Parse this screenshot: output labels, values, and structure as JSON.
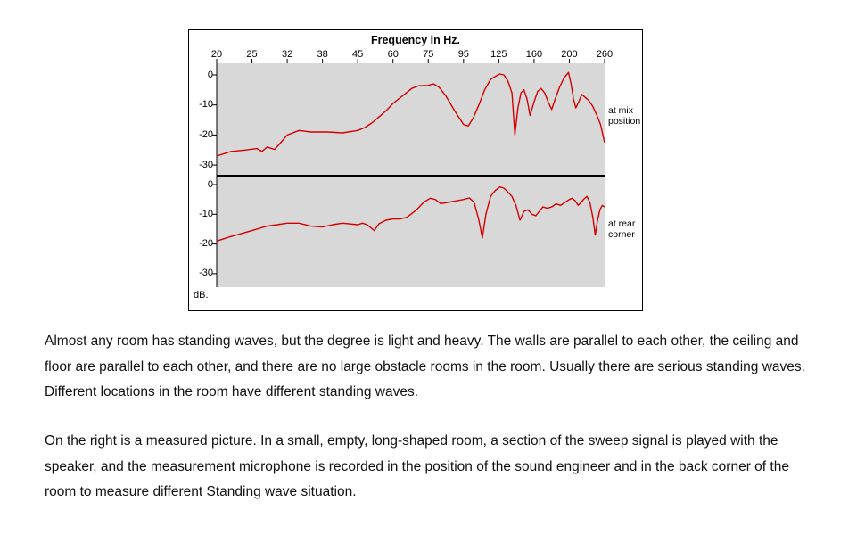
{
  "page": {
    "paragraphs": [
      "Almost any room has standing waves, but the degree is light and heavy. The walls are parallel to each other, the ceiling and floor are parallel to each other, and there are no large obstacle rooms in the room. Usually there are serious standing waves. Different locations in the room have different standing waves.",
      "On the right is a measured picture. In a small, empty,  long-shaped room, a section of the sweep signal is played with the speaker, and the measurement  microphone is recorded in the position of the sound engineer and in the back corner of the room to measure different Standing wave situation."
    ]
  },
  "chart_data": {
    "type": "line",
    "title": "Frequency in Hz.",
    "x_ticks": [
      20,
      25,
      32,
      38,
      45,
      60,
      75,
      95,
      125,
      160,
      200,
      260
    ],
    "x_axis_note": "tick marks evenly spaced (approximately logarithmic frequency scale), unit Hz",
    "y_ticks": [
      0,
      -10,
      -20,
      -30
    ],
    "y_unit_label": "dB.",
    "ylim": [
      -33,
      4
    ],
    "grid": false,
    "legend_position": "right, one label per stacked panel",
    "line_color": "#d40000",
    "plot_background": "#d8d8d8",
    "series": [
      {
        "name": "at mix position",
        "label_lines": [
          "at mix",
          "position"
        ],
        "points": [
          [
            20,
            -27
          ],
          [
            22,
            -25.5
          ],
          [
            24,
            -25
          ],
          [
            26,
            -24.5
          ],
          [
            27,
            -25.5
          ],
          [
            28,
            -24
          ],
          [
            29.5,
            -24.8
          ],
          [
            31,
            -22
          ],
          [
            32,
            -20
          ],
          [
            34,
            -18.5
          ],
          [
            36,
            -19
          ],
          [
            39,
            -19
          ],
          [
            42,
            -19.3
          ],
          [
            45,
            -18.5
          ],
          [
            48,
            -17.5
          ],
          [
            51,
            -16
          ],
          [
            54,
            -14
          ],
          [
            57,
            -12
          ],
          [
            60,
            -9.5
          ],
          [
            64,
            -7
          ],
          [
            68,
            -4.5
          ],
          [
            71,
            -3.6
          ],
          [
            75,
            -3.5
          ],
          [
            78,
            -3
          ],
          [
            81,
            -4
          ],
          [
            85,
            -7
          ],
          [
            90,
            -12
          ],
          [
            95,
            -16.5
          ],
          [
            99,
            -17
          ],
          [
            103,
            -14.5
          ],
          [
            108,
            -10
          ],
          [
            113,
            -5
          ],
          [
            118,
            -1.5
          ],
          [
            122,
            -0.5
          ],
          [
            126,
            0.3
          ],
          [
            130,
            0
          ],
          [
            134,
            -2
          ],
          [
            138,
            -6
          ],
          [
            141,
            -20
          ],
          [
            144,
            -11
          ],
          [
            147,
            -6
          ],
          [
            150,
            -5
          ],
          [
            153,
            -8
          ],
          [
            156,
            -13.5
          ],
          [
            160,
            -9
          ],
          [
            164,
            -5.5
          ],
          [
            168,
            -4.5
          ],
          [
            172,
            -6
          ],
          [
            176,
            -9
          ],
          [
            180,
            -11.5
          ],
          [
            184,
            -8
          ],
          [
            189,
            -4
          ],
          [
            194,
            -1
          ],
          [
            199,
            0.8
          ],
          [
            203,
            -3
          ],
          [
            207,
            -8
          ],
          [
            211,
            -11
          ],
          [
            216,
            -9
          ],
          [
            221,
            -6.5
          ],
          [
            227,
            -7.5
          ],
          [
            233,
            -8.5
          ],
          [
            240,
            -10.5
          ],
          [
            247,
            -13.5
          ],
          [
            253,
            -16.5
          ],
          [
            260,
            -22.5
          ]
        ]
      },
      {
        "name": "at rear corner",
        "label_lines": [
          "at rear",
          "corner"
        ],
        "points": [
          [
            20,
            -19
          ],
          [
            22,
            -17.5
          ],
          [
            25,
            -15.5
          ],
          [
            28,
            -14
          ],
          [
            30,
            -13.5
          ],
          [
            32,
            -13
          ],
          [
            34,
            -13
          ],
          [
            36,
            -14
          ],
          [
            38,
            -14.3
          ],
          [
            40,
            -13.5
          ],
          [
            42,
            -13
          ],
          [
            45,
            -13.5
          ],
          [
            47,
            -13
          ],
          [
            49,
            -13.5
          ],
          [
            52,
            -15.5
          ],
          [
            54,
            -13.2
          ],
          [
            57,
            -12
          ],
          [
            60,
            -11.6
          ],
          [
            63,
            -11.6
          ],
          [
            66,
            -11
          ],
          [
            70,
            -8.5
          ],
          [
            73,
            -6
          ],
          [
            76,
            -4.6
          ],
          [
            79,
            -5
          ],
          [
            82,
            -6.4
          ],
          [
            86,
            -6
          ],
          [
            90,
            -5.6
          ],
          [
            95,
            -5
          ],
          [
            100,
            -4.5
          ],
          [
            104,
            -6
          ],
          [
            108,
            -12
          ],
          [
            111,
            -18
          ],
          [
            114,
            -10
          ],
          [
            118,
            -4
          ],
          [
            122,
            -2
          ],
          [
            126,
            -0.8
          ],
          [
            130,
            -1.2
          ],
          [
            134,
            -2.5
          ],
          [
            138,
            -4
          ],
          [
            142,
            -7
          ],
          [
            146,
            -12
          ],
          [
            150,
            -9
          ],
          [
            154,
            -8.5
          ],
          [
            158,
            -10
          ],
          [
            162,
            -10.5
          ],
          [
            166,
            -9
          ],
          [
            170,
            -7.5
          ],
          [
            175,
            -8
          ],
          [
            180,
            -7.5
          ],
          [
            185,
            -6.5
          ],
          [
            190,
            -7
          ],
          [
            195,
            -6
          ],
          [
            200,
            -5
          ],
          [
            205,
            -4.6
          ],
          [
            210,
            -5.5
          ],
          [
            215,
            -7
          ],
          [
            220,
            -6
          ],
          [
            225,
            -4.8
          ],
          [
            230,
            -4
          ],
          [
            235,
            -6
          ],
          [
            240,
            -11
          ],
          [
            244,
            -17
          ],
          [
            248,
            -12
          ],
          [
            252,
            -8.5
          ],
          [
            256,
            -7
          ],
          [
            260,
            -7.5
          ]
        ]
      }
    ]
  }
}
